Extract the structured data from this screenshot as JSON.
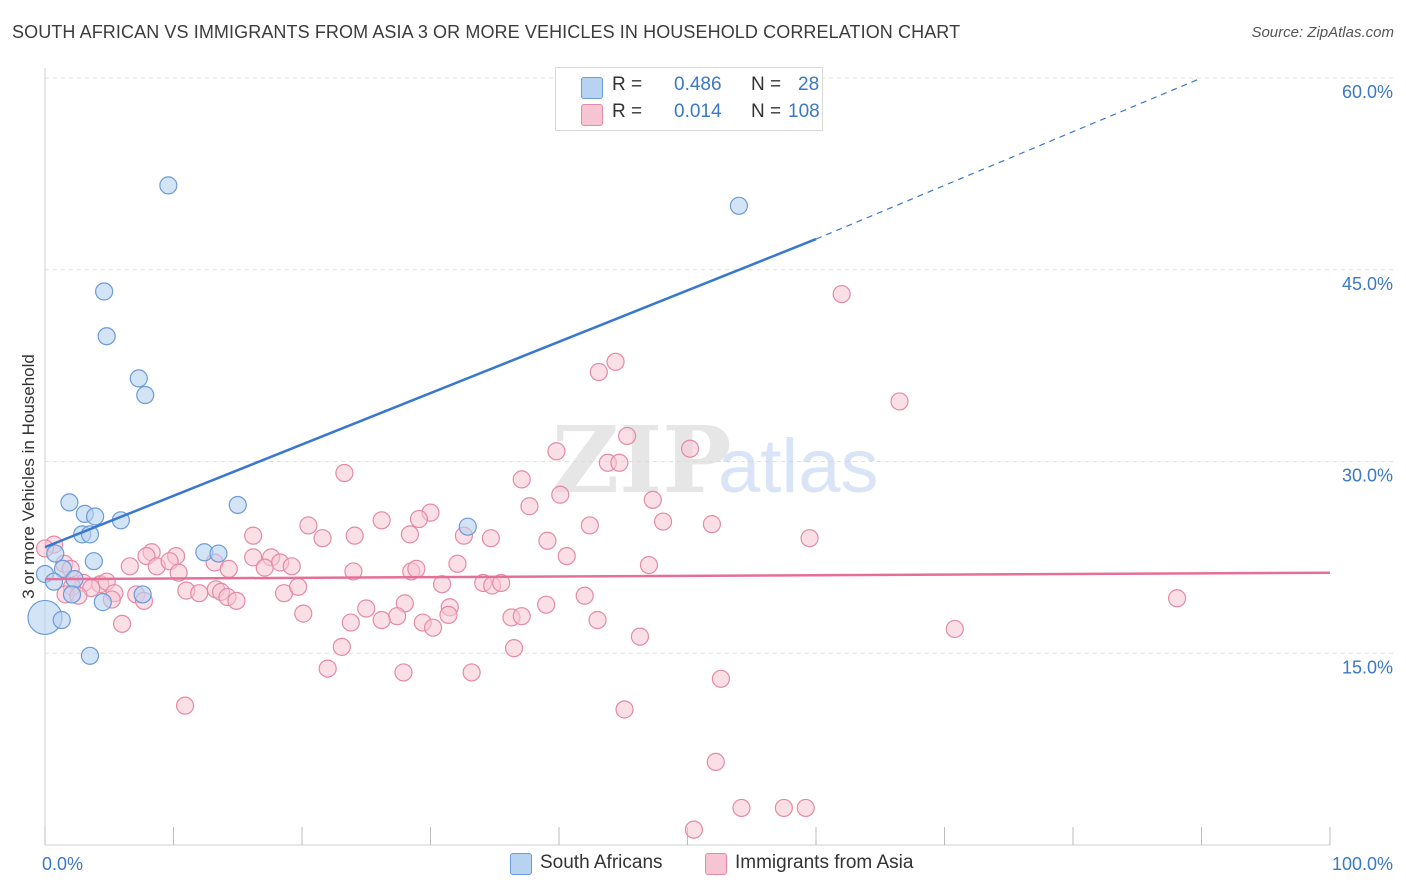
{
  "title": "SOUTH AFRICAN VS IMMIGRANTS FROM ASIA 3 OR MORE VEHICLES IN HOUSEHOLD CORRELATION CHART",
  "source": "Source: ZipAtlas.com",
  "watermark": {
    "zip": "ZIP",
    "atlas": "atlas"
  },
  "colors": {
    "blue_fill": "#b8d2f2",
    "blue_stroke": "#6b9bd8",
    "blue_line": "#3a78d0",
    "pink_fill": "#f7c4d3",
    "pink_stroke": "#e58aa6",
    "pink_line": "#e4709a",
    "axis_label": "#3a78c8",
    "grid": "#e0e0e0"
  },
  "legend": {
    "series": [
      {
        "r_label": "R =",
        "r_value": "0.486",
        "n_label": "N =",
        "n_value": "28"
      },
      {
        "r_label": "R =",
        "r_value": "0.014",
        "n_label": "N =",
        "n_value": "108"
      }
    ]
  },
  "chart_data": {
    "type": "scatter",
    "title": "SOUTH AFRICAN VS IMMIGRANTS FROM ASIA 3 OR MORE VEHICLES IN HOUSEHOLD CORRELATION CHART",
    "xlabel": "",
    "ylabel": "3 or more Vehicles in Household",
    "xlim": [
      0,
      100
    ],
    "ylim": [
      0,
      60
    ],
    "x_tick_labels": [
      "0.0%",
      "100.0%"
    ],
    "y_ticks": [
      15,
      30,
      45,
      60
    ],
    "y_tick_labels": [
      "15.0%",
      "30.0%",
      "45.0%",
      "60.0%"
    ],
    "grid": "horizontal dashed",
    "legend_placement": "top-center",
    "series": [
      {
        "name": "South Africans",
        "r": 0.486,
        "n": 28,
        "trend": {
          "x0": 0,
          "y0": 23.3,
          "x1": 60,
          "y1": 47.4,
          "dashed_to": [
            90,
            60.0
          ]
        },
        "points": [
          [
            9.6,
            51.6
          ],
          [
            54.0,
            50.0
          ],
          [
            4.6,
            43.3
          ],
          [
            4.8,
            39.8
          ],
          [
            7.3,
            36.5
          ],
          [
            7.8,
            35.2
          ],
          [
            1.9,
            26.8
          ],
          [
            15.0,
            26.6
          ],
          [
            3.1,
            25.9
          ],
          [
            3.9,
            25.7
          ],
          [
            5.9,
            25.4
          ],
          [
            32.9,
            24.9
          ],
          [
            2.9,
            24.3
          ],
          [
            3.5,
            24.3
          ],
          [
            0.8,
            22.8
          ],
          [
            12.4,
            22.9
          ],
          [
            13.5,
            22.8
          ],
          [
            3.8,
            22.2
          ],
          [
            1.4,
            21.6
          ],
          [
            0.0,
            21.2
          ],
          [
            0.7,
            20.6
          ],
          [
            2.3,
            20.8
          ],
          [
            2.1,
            19.6
          ],
          [
            7.6,
            19.6
          ],
          [
            4.5,
            19.0
          ],
          [
            0.0,
            17.8
          ],
          [
            1.3,
            17.6
          ],
          [
            3.5,
            14.8
          ]
        ]
      },
      {
        "name": "Immigrants from Asia",
        "r": 0.014,
        "n": 108,
        "trend": {
          "x0": 0,
          "y0": 20.8,
          "x1": 100,
          "y1": 21.3
        },
        "points": [
          [
            62.0,
            43.1
          ],
          [
            44.4,
            37.8
          ],
          [
            43.1,
            37.0
          ],
          [
            66.5,
            34.7
          ],
          [
            45.3,
            32.0
          ],
          [
            50.2,
            31.0
          ],
          [
            39.8,
            30.8
          ],
          [
            43.8,
            29.9
          ],
          [
            44.7,
            29.9
          ],
          [
            23.3,
            29.1
          ],
          [
            47.3,
            27.0
          ],
          [
            37.1,
            28.6
          ],
          [
            37.7,
            26.5
          ],
          [
            40.1,
            27.4
          ],
          [
            30.0,
            26.0
          ],
          [
            20.5,
            25.0
          ],
          [
            26.2,
            25.4
          ],
          [
            29.1,
            25.5
          ],
          [
            42.4,
            25.0
          ],
          [
            48.1,
            25.3
          ],
          [
            51.9,
            25.1
          ],
          [
            16.2,
            24.2
          ],
          [
            24.1,
            24.2
          ],
          [
            32.6,
            24.2
          ],
          [
            28.4,
            24.3
          ],
          [
            21.6,
            24.0
          ],
          [
            34.7,
            24.0
          ],
          [
            39.1,
            23.8
          ],
          [
            59.5,
            24.0
          ],
          [
            0.7,
            23.5
          ],
          [
            0.0,
            23.2
          ],
          [
            8.3,
            22.9
          ],
          [
            10.2,
            22.6
          ],
          [
            13.2,
            22.1
          ],
          [
            14.3,
            21.6
          ],
          [
            16.2,
            22.5
          ],
          [
            17.6,
            22.5
          ],
          [
            1.5,
            22.0
          ],
          [
            2.0,
            21.6
          ],
          [
            6.6,
            21.8
          ],
          [
            7.9,
            22.6
          ],
          [
            8.7,
            21.8
          ],
          [
            9.7,
            22.2
          ],
          [
            10.4,
            21.3
          ],
          [
            17.1,
            21.7
          ],
          [
            18.3,
            22.1
          ],
          [
            19.2,
            21.8
          ],
          [
            40.6,
            22.6
          ],
          [
            47.0,
            21.9
          ],
          [
            28.5,
            21.4
          ],
          [
            24.0,
            21.4
          ],
          [
            32.1,
            22.0
          ],
          [
            28.9,
            21.6
          ],
          [
            3.0,
            20.5
          ],
          [
            4.3,
            20.4
          ],
          [
            4.8,
            20.6
          ],
          [
            2.1,
            20.2
          ],
          [
            3.6,
            20.1
          ],
          [
            5.4,
            19.7
          ],
          [
            7.1,
            19.6
          ],
          [
            11.0,
            19.9
          ],
          [
            12.0,
            19.7
          ],
          [
            13.3,
            20.0
          ],
          [
            13.7,
            19.8
          ],
          [
            14.2,
            19.4
          ],
          [
            14.9,
            19.1
          ],
          [
            18.6,
            19.7
          ],
          [
            19.7,
            20.2
          ],
          [
            30.9,
            20.4
          ],
          [
            34.1,
            20.5
          ],
          [
            34.8,
            20.3
          ],
          [
            35.5,
            20.5
          ],
          [
            1.6,
            19.6
          ],
          [
            2.6,
            19.5
          ],
          [
            5.2,
            19.2
          ],
          [
            7.7,
            19.1
          ],
          [
            28.0,
            18.9
          ],
          [
            31.5,
            18.6
          ],
          [
            39.0,
            18.8
          ],
          [
            42.0,
            19.5
          ],
          [
            20.1,
            18.1
          ],
          [
            25.0,
            18.5
          ],
          [
            27.4,
            17.9
          ],
          [
            31.4,
            18.0
          ],
          [
            36.3,
            17.8
          ],
          [
            37.1,
            17.9
          ],
          [
            26.2,
            17.6
          ],
          [
            29.4,
            17.4
          ],
          [
            43.0,
            17.6
          ],
          [
            6.0,
            17.3
          ],
          [
            23.8,
            17.4
          ],
          [
            30.2,
            17.0
          ],
          [
            70.8,
            16.9
          ],
          [
            88.1,
            19.3
          ],
          [
            46.3,
            16.3
          ],
          [
            23.1,
            15.5
          ],
          [
            36.5,
            15.4
          ],
          [
            22.0,
            13.8
          ],
          [
            27.9,
            13.5
          ],
          [
            33.2,
            13.5
          ],
          [
            52.6,
            13.0
          ],
          [
            10.9,
            10.9
          ],
          [
            45.1,
            10.6
          ],
          [
            52.2,
            6.5
          ],
          [
            50.5,
            1.2
          ],
          [
            54.2,
            2.9
          ],
          [
            57.5,
            2.9
          ],
          [
            59.2,
            2.9
          ]
        ]
      }
    ]
  }
}
